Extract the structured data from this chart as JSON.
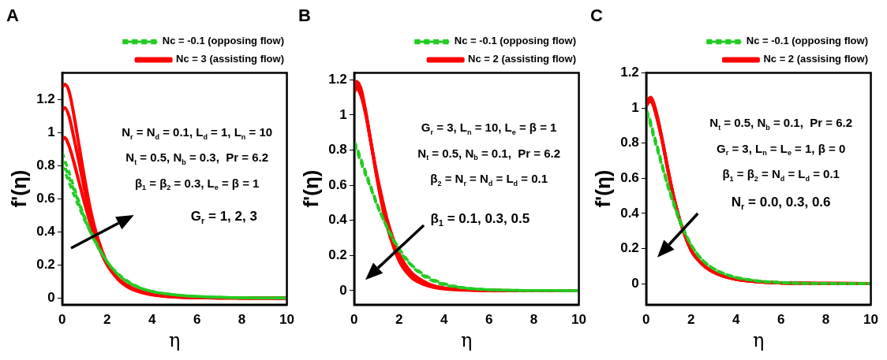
{
  "chart_data": [
    {
      "type": "line",
      "title": "A",
      "xlabel": "η",
      "ylabel": "f'(η)",
      "xlim": [
        0,
        10
      ],
      "xticks": [
        0,
        2,
        4,
        6,
        8,
        10
      ],
      "ylim": [
        -0.04,
        1.36
      ],
      "yticks": [
        0,
        0.2,
        0.4,
        0.6,
        0.8,
        1,
        1.2
      ],
      "grid": false,
      "legend": "top",
      "marker": "none",
      "x": [
        0,
        0.1,
        0.3,
        0.5,
        0.75,
        1,
        1.25,
        1.5,
        2,
        2.5,
        3,
        3.5,
        4,
        5,
        6,
        7,
        8,
        10
      ],
      "annotations": [
        "N$_{r}$ = N$_{d}$ = 0.1, L$_{d}$ = 1, L$_{n}$ = 10",
        "N$_{t}$ = 0.5, N$_{b}$ = 0.3,  Pr = 6.2",
        "β$_{1}$ = β$_{2}$ = 0.3, L$_{e}$ = β = 1",
        "G$_{r}$ = 1, 2, 3"
      ],
      "series": [
        {
          "name": "Nc = 3 (assisting flow)",
          "color": "#ff0000",
          "line_style": "solid",
          "values": [
            1.27,
            1.29,
            1.25,
            1.12,
            0.92,
            0.72,
            0.54,
            0.4,
            0.21,
            0.11,
            0.06,
            0.035,
            0.02,
            0.007,
            0.003,
            0.001,
            0,
            0
          ]
        },
        {
          "color": "#ff0000",
          "line_style": "solid",
          "values": [
            1.13,
            1.15,
            1.1,
            0.98,
            0.82,
            0.65,
            0.5,
            0.38,
            0.21,
            0.115,
            0.065,
            0.04,
            0.022,
            0.008,
            0.003,
            0.001,
            0,
            0
          ]
        },
        {
          "color": "#ff0000",
          "line_style": "solid",
          "values": [
            0.95,
            0.97,
            0.92,
            0.83,
            0.7,
            0.57,
            0.45,
            0.35,
            0.2,
            0.115,
            0.07,
            0.04,
            0.024,
            0.009,
            0.003,
            0.001,
            0,
            0
          ]
        },
        {
          "name": "Nc = -0.1 (opposing flow)",
          "color": "#22cc22",
          "line_style": "dashed",
          "values": [
            0.88,
            0.84,
            0.76,
            0.68,
            0.58,
            0.49,
            0.41,
            0.34,
            0.22,
            0.14,
            0.09,
            0.06,
            0.04,
            0.02,
            0.01,
            0.005,
            0.002,
            0
          ]
        },
        {
          "color": "#22cc22",
          "line_style": "dashed",
          "values": [
            0.84,
            0.8,
            0.73,
            0.66,
            0.57,
            0.48,
            0.4,
            0.33,
            0.22,
            0.14,
            0.09,
            0.06,
            0.04,
            0.02,
            0.01,
            0.005,
            0.002,
            0
          ]
        },
        {
          "color": "#22cc22",
          "line_style": "dashed",
          "values": [
            0.8,
            0.77,
            0.7,
            0.63,
            0.55,
            0.47,
            0.4,
            0.33,
            0.22,
            0.145,
            0.095,
            0.06,
            0.04,
            0.02,
            0.01,
            0.005,
            0.002,
            0
          ]
        }
      ]
    },
    {
      "type": "line",
      "title": "B",
      "xlabel": "η",
      "ylabel": "f'(η)",
      "xlim": [
        0,
        10
      ],
      "xticks": [
        0,
        2,
        4,
        6,
        8,
        10
      ],
      "ylim": [
        -0.08,
        1.24
      ],
      "yticks": [
        0,
        0.2,
        0.4,
        0.6,
        0.8,
        1,
        1.2
      ],
      "grid": false,
      "legend": "top",
      "marker": "none",
      "x": [
        0,
        0.1,
        0.3,
        0.5,
        0.75,
        1,
        1.25,
        1.5,
        2,
        2.5,
        3,
        3.5,
        4,
        5,
        6,
        7,
        8,
        10
      ],
      "annotations": [
        "G$_{r}$ = 3, L$_{n}$ = 10, L$_{e}$ = β = 1",
        "N$_{t}$ = 0.5, N$_{b}$ = 0.1,  Pr = 6.2",
        "β$_{2}$ = N$_{r}$ = N$_{d}$ = L$_{d}$ = 0.1",
        "β$_{1}$ = 0.1, 0.3, 0.5"
      ],
      "series": [
        {
          "name": "Nc = 2 (assisting flow)",
          "color": "#ff0000",
          "line_style": "solid",
          "values": [
            1.17,
            1.19,
            1.15,
            1.03,
            0.84,
            0.65,
            0.48,
            0.35,
            0.17,
            0.08,
            0.04,
            0.02,
            0.01,
            0.003,
            0.001,
            0,
            0,
            0
          ]
        },
        {
          "color": "#ff0000",
          "line_style": "solid",
          "values": [
            1.15,
            1.17,
            1.13,
            1.02,
            0.84,
            0.66,
            0.5,
            0.37,
            0.19,
            0.095,
            0.05,
            0.025,
            0.013,
            0.004,
            0.001,
            0,
            0,
            0
          ]
        },
        {
          "color": "#ff0000",
          "line_style": "solid",
          "values": [
            1.13,
            1.15,
            1.11,
            1.01,
            0.84,
            0.67,
            0.52,
            0.39,
            0.21,
            0.11,
            0.06,
            0.03,
            0.016,
            0.005,
            0.002,
            0,
            0,
            0
          ]
        },
        {
          "name": "Nc = -0.1 (opposing flow)",
          "color": "#22cc22",
          "line_style": "dashed",
          "values": [
            0.85,
            0.82,
            0.75,
            0.68,
            0.59,
            0.5,
            0.42,
            0.35,
            0.23,
            0.15,
            0.09,
            0.055,
            0.033,
            0.013,
            0.005,
            0.002,
            0.001,
            0
          ]
        },
        {
          "color": "#22cc22",
          "line_style": "dashed",
          "values": [
            0.84,
            0.81,
            0.74,
            0.67,
            0.58,
            0.5,
            0.42,
            0.35,
            0.23,
            0.15,
            0.095,
            0.06,
            0.036,
            0.014,
            0.005,
            0.002,
            0.001,
            0
          ]
        },
        {
          "color": "#22cc22",
          "line_style": "dashed",
          "values": [
            0.83,
            0.8,
            0.73,
            0.66,
            0.58,
            0.49,
            0.42,
            0.35,
            0.24,
            0.155,
            0.1,
            0.065,
            0.04,
            0.015,
            0.006,
            0.002,
            0.001,
            0
          ]
        }
      ]
    },
    {
      "type": "line",
      "title": "C",
      "xlabel": "η",
      "ylabel": "f'(η)",
      "xlim": [
        0,
        10
      ],
      "xticks": [
        0,
        2,
        4,
        6,
        8,
        10
      ],
      "ylim": [
        -0.12,
        1.2
      ],
      "yticks": [
        0,
        0.2,
        0.4,
        0.6,
        0.8,
        1,
        1.2
      ],
      "grid": false,
      "legend": "top",
      "marker": "none",
      "x": [
        0,
        0.1,
        0.2,
        0.3,
        0.5,
        0.75,
        1,
        1.25,
        1.5,
        2,
        2.5,
        3,
        3.5,
        4,
        5,
        6,
        7,
        8,
        10
      ],
      "annotations": [
        "N$_{t}$ = 0.5, N$_{b}$ = 0.1,  Pr = 6.2",
        "G$_{r}$ = 3, L$_{n}$ = L$_{e}$ = 1, β = 0",
        "β$_{1}$ = β$_{2}$ = N$_{d}$ = L$_{d}$ = 0.1",
        "N$_{r}$ = 0.0, 0.3, 0.6"
      ],
      "series": [
        {
          "name": "Nc = 2 (assising flow)",
          "color": "#ff0000",
          "line_style": "solid",
          "values": [
            1.03,
            1.05,
            1.06,
            1.04,
            0.95,
            0.8,
            0.63,
            0.48,
            0.36,
            0.19,
            0.11,
            0.065,
            0.04,
            0.025,
            0.01,
            0.004,
            0.002,
            0.001,
            0
          ]
        },
        {
          "color": "#ff0000",
          "line_style": "solid",
          "values": [
            1.02,
            1.04,
            1.05,
            1.03,
            0.94,
            0.79,
            0.63,
            0.48,
            0.36,
            0.19,
            0.11,
            0.065,
            0.04,
            0.025,
            0.01,
            0.004,
            0.002,
            0.001,
            0
          ]
        },
        {
          "color": "#ff0000",
          "line_style": "solid",
          "values": [
            1.01,
            1.03,
            1.04,
            1.02,
            0.93,
            0.79,
            0.62,
            0.48,
            0.36,
            0.19,
            0.11,
            0.065,
            0.04,
            0.025,
            0.01,
            0.004,
            0.002,
            0.001,
            0
          ]
        },
        {
          "name": "Nc = -0.1 (opposing flow)",
          "color": "#22cc22",
          "line_style": "dashed",
          "values": [
            0.99,
            0.96,
            0.92,
            0.87,
            0.78,
            0.66,
            0.55,
            0.45,
            0.36,
            0.22,
            0.135,
            0.085,
            0.055,
            0.035,
            0.015,
            0.006,
            0.002,
            0.001,
            0
          ]
        },
        {
          "color": "#22cc22",
          "line_style": "dashed",
          "values": [
            0.98,
            0.95,
            0.91,
            0.86,
            0.77,
            0.65,
            0.54,
            0.45,
            0.36,
            0.22,
            0.135,
            0.085,
            0.055,
            0.035,
            0.015,
            0.006,
            0.002,
            0.001,
            0
          ]
        },
        {
          "color": "#22cc22",
          "line_style": "dashed",
          "values": [
            0.97,
            0.94,
            0.9,
            0.85,
            0.76,
            0.65,
            0.54,
            0.44,
            0.35,
            0.22,
            0.135,
            0.085,
            0.055,
            0.035,
            0.015,
            0.006,
            0.002,
            0.001,
            0
          ]
        }
      ]
    }
  ]
}
